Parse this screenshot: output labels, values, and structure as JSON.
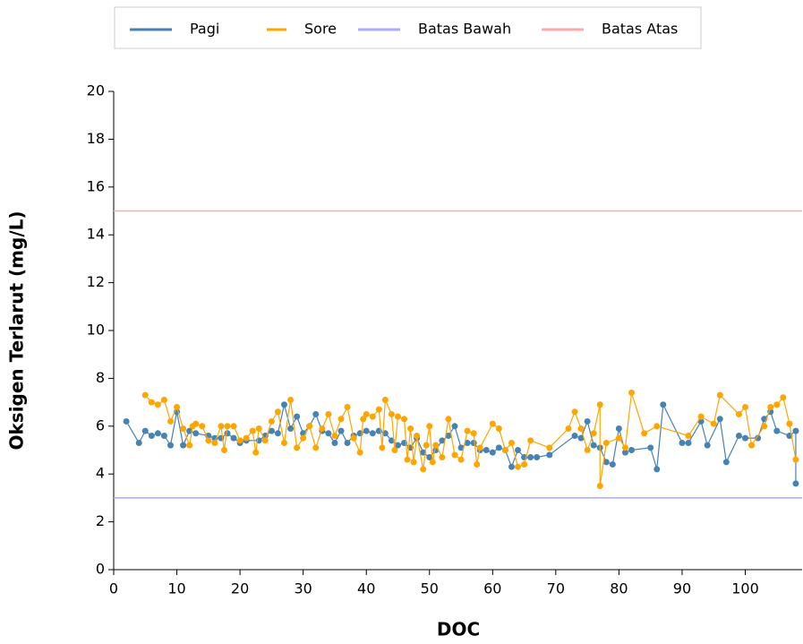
{
  "chart_data": {
    "type": "line",
    "x_label": "DOC",
    "y_label": "Oksigen Terlarut (mg/L)",
    "xlim": [
      0,
      109
    ],
    "ylim": [
      0,
      20
    ],
    "xticks": [
      0,
      10,
      20,
      30,
      40,
      50,
      60,
      70,
      80,
      90,
      100
    ],
    "yticks": [
      0,
      2,
      4,
      6,
      8,
      10,
      12,
      14,
      16,
      18,
      20
    ],
    "grid": false,
    "legend": "top",
    "series": [
      {
        "name": "Pagi",
        "color": "#4682b4",
        "markers": true,
        "x": [
          2,
          4,
          5,
          6,
          7,
          8,
          9,
          10,
          11,
          12,
          13,
          15,
          16,
          17,
          18,
          19,
          20,
          21,
          23,
          24,
          25,
          26,
          27,
          28,
          29,
          30,
          31,
          32,
          33,
          34,
          35,
          36,
          37,
          38,
          39,
          40,
          41,
          42,
          43,
          44,
          45,
          46,
          47,
          48,
          49,
          50,
          51,
          52,
          53,
          54,
          55,
          56,
          57,
          58,
          59,
          60,
          61,
          62,
          63,
          64,
          65,
          66,
          67,
          69,
          73,
          74,
          75,
          76,
          77,
          78,
          79,
          80,
          81,
          82,
          85,
          86,
          87,
          90,
          91,
          93,
          94,
          96,
          97,
          99,
          100,
          102,
          103,
          104,
          105,
          107,
          108,
          108
        ],
        "values": [
          6.2,
          5.3,
          5.8,
          5.6,
          5.7,
          5.6,
          5.2,
          6.6,
          5.2,
          5.8,
          5.7,
          5.6,
          5.5,
          5.5,
          5.7,
          5.5,
          5.3,
          5.4,
          5.4,
          5.6,
          5.8,
          5.7,
          6.9,
          5.9,
          6.4,
          5.7,
          6.0,
          6.5,
          5.8,
          5.7,
          5.3,
          5.8,
          5.3,
          5.6,
          5.7,
          5.8,
          5.7,
          5.8,
          5.7,
          5.4,
          5.2,
          5.3,
          5.1,
          5.5,
          4.9,
          4.7,
          5.0,
          5.4,
          5.6,
          6.0,
          5.1,
          5.3,
          5.3,
          5.0,
          5.0,
          4.9,
          5.1,
          5.0,
          4.3,
          5.0,
          4.7,
          4.7,
          4.7,
          4.8,
          5.6,
          5.5,
          6.2,
          5.2,
          5.1,
          4.5,
          4.4,
          5.9,
          4.9,
          5.0,
          5.1,
          4.2,
          6.9,
          5.3,
          5.3,
          6.2,
          5.2,
          6.3,
          4.5,
          5.6,
          5.5,
          5.5,
          6.3,
          6.6,
          5.8,
          5.6,
          5.8,
          3.6
        ]
      },
      {
        "name": "Sore",
        "color": "#ffa500",
        "markers": true,
        "x": [
          5,
          6,
          7,
          8,
          9,
          10,
          11,
          12,
          12.5,
          13,
          14,
          15,
          16,
          17,
          17.5,
          18,
          19,
          20,
          21,
          22,
          22.5,
          23,
          24,
          25,
          26,
          27,
          28,
          29,
          30,
          31,
          32,
          33,
          34,
          35,
          36,
          37,
          38,
          39,
          39.5,
          40,
          41,
          42,
          42.5,
          43,
          44,
          44.5,
          45,
          46,
          46.5,
          47,
          47.5,
          48,
          49,
          49.5,
          50,
          50.5,
          51,
          52,
          53,
          54,
          55,
          56,
          57,
          57.5,
          58,
          60,
          61,
          62,
          63,
          64,
          65,
          66,
          69,
          72,
          73,
          74,
          75,
          76,
          77,
          77,
          78,
          80,
          81,
          82,
          84,
          86,
          91,
          93,
          95,
          96,
          99,
          100,
          101,
          103,
          104,
          105,
          106,
          107,
          108
        ],
        "values": [
          7.3,
          7.0,
          6.9,
          7.1,
          6.2,
          6.8,
          5.9,
          5.2,
          6.0,
          6.1,
          6.0,
          5.4,
          5.3,
          6.0,
          5.0,
          6.0,
          6.0,
          5.4,
          5.5,
          5.8,
          4.9,
          5.9,
          5.4,
          6.2,
          6.6,
          5.3,
          7.1,
          5.1,
          5.5,
          6.0,
          5.1,
          5.9,
          6.5,
          5.6,
          6.3,
          6.8,
          5.5,
          4.9,
          6.3,
          6.5,
          6.4,
          6.7,
          5.1,
          7.1,
          6.5,
          5.0,
          6.4,
          6.3,
          4.6,
          5.9,
          4.5,
          5.6,
          4.2,
          5.2,
          6.0,
          4.5,
          5.2,
          4.7,
          6.3,
          4.8,
          4.6,
          5.8,
          5.7,
          4.4,
          5.1,
          6.1,
          5.9,
          5.0,
          5.3,
          4.3,
          4.4,
          5.4,
          5.1,
          5.9,
          6.6,
          5.9,
          5.0,
          5.7,
          6.9,
          3.5,
          5.3,
          5.5,
          5.1,
          7.4,
          5.7,
          6.0,
          5.6,
          6.4,
          6.1,
          7.3,
          6.5,
          6.8,
          5.2,
          6.0,
          6.8,
          6.9,
          7.2,
          6.1,
          4.6
        ]
      },
      {
        "name": "Batas Bawah",
        "color": "#aaaaff",
        "markers": false,
        "x": [
          0,
          109
        ],
        "values": [
          3,
          3
        ]
      },
      {
        "name": "Batas Atas",
        "color": "#ffaaaa",
        "markers": false,
        "x": [
          0,
          109
        ],
        "values": [
          15,
          15
        ]
      }
    ]
  }
}
